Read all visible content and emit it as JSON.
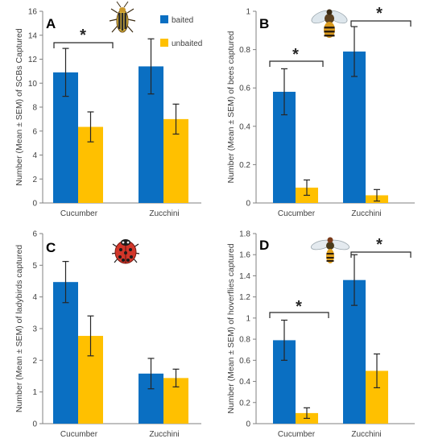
{
  "colors": {
    "baited": "#0a6fc2",
    "unbaited": "#ffc000",
    "axis": "#808080",
    "text": "#404040",
    "error": "#262626",
    "panel_letter": "#000000"
  },
  "legend": {
    "baited": "baited",
    "unbaited": "unbaited"
  },
  "icons": [
    "beetle-icon",
    "bee-icon",
    "ladybird-icon",
    "hoverfly-icon"
  ],
  "chart_data": [
    {
      "type": "bar",
      "panel": "A",
      "categories": [
        "Cucumber",
        "Zucchini"
      ],
      "series": [
        {
          "name": "baited",
          "values": [
            10.9,
            11.4
          ],
          "errors": [
            2.0,
            2.3
          ]
        },
        {
          "name": "unbaited",
          "values": [
            6.35,
            7.0
          ],
          "errors": [
            1.25,
            1.25
          ]
        }
      ],
      "xlabel": "",
      "ylabel": "Number (Mean ± SEM) of SCBs Captured",
      "ylim": [
        0,
        16
      ],
      "yticks": [
        "0",
        "2",
        "4",
        "6",
        "8",
        "10",
        "12",
        "14",
        "16"
      ],
      "grid": false,
      "legend_position": "top-right",
      "significance": [
        {
          "category": 0,
          "label": "*"
        }
      ]
    },
    {
      "type": "bar",
      "panel": "B",
      "categories": [
        "Cucumber",
        "Zucchini"
      ],
      "series": [
        {
          "name": "baited",
          "values": [
            0.58,
            0.79
          ],
          "errors": [
            0.12,
            0.13
          ]
        },
        {
          "name": "unbaited",
          "values": [
            0.08,
            0.04
          ],
          "errors": [
            0.04,
            0.03
          ]
        }
      ],
      "xlabel": "",
      "ylabel": "Number (Mean ± SEM) of bees captured",
      "ylim": [
        0,
        1
      ],
      "yticks": [
        "0",
        "0.2",
        "0.4",
        "0.6",
        "0.8",
        "1"
      ],
      "grid": false,
      "significance": [
        {
          "category": 0,
          "label": "*"
        },
        {
          "category": 1,
          "label": "*"
        }
      ]
    },
    {
      "type": "bar",
      "panel": "C",
      "categories": [
        "Cucumber",
        "Zucchini"
      ],
      "series": [
        {
          "name": "baited",
          "values": [
            4.47,
            1.58
          ],
          "errors": [
            0.65,
            0.48
          ]
        },
        {
          "name": "unbaited",
          "values": [
            2.77,
            1.44
          ],
          "errors": [
            0.63,
            0.28
          ]
        }
      ],
      "xlabel": "",
      "ylabel": "Number (Mean ± SEM) of ladybirds captured",
      "ylim": [
        0,
        6
      ],
      "yticks": [
        "0",
        "1",
        "2",
        "3",
        "4",
        "5",
        "6"
      ],
      "grid": false,
      "significance": []
    },
    {
      "type": "bar",
      "panel": "D",
      "categories": [
        "Cucumber",
        "Zucchini"
      ],
      "series": [
        {
          "name": "baited",
          "values": [
            0.79,
            1.36
          ],
          "errors": [
            0.19,
            0.24
          ]
        },
        {
          "name": "unbaited",
          "values": [
            0.1,
            0.5
          ],
          "errors": [
            0.05,
            0.16
          ]
        }
      ],
      "xlabel": "",
      "ylabel": "Number (Mean ± SEM) of hoverflies captured",
      "ylim": [
        0,
        1.8
      ],
      "yticks": [
        "0",
        "0.2",
        "0.4",
        "0.6",
        "0.8",
        "1",
        "1.2",
        "1.4",
        "1.6",
        "1.8"
      ],
      "grid": false,
      "significance": [
        {
          "category": 0,
          "label": "*"
        },
        {
          "category": 1,
          "label": "*"
        }
      ]
    }
  ]
}
